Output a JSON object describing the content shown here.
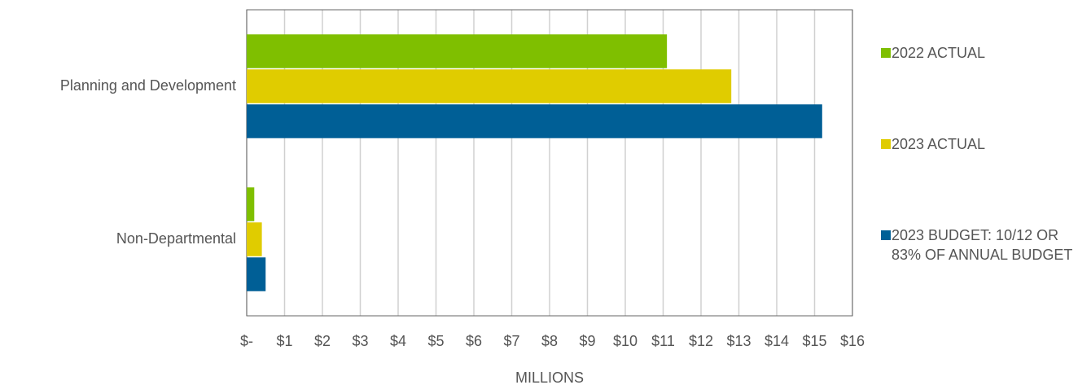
{
  "chart_data": {
    "type": "hbar",
    "categories": [
      "Planning and Development",
      "Non-Departmental"
    ],
    "series": [
      {
        "name": "2022 ACTUAL",
        "color": "#7fbf00",
        "values": [
          11.1,
          0.2
        ]
      },
      {
        "name": "2023 ACTUAL",
        "color": "#e0cc00",
        "values": [
          12.8,
          0.4
        ]
      },
      {
        "name": "2023 BUDGET:  10/12 OR 83% OF ANNUAL BUDGET",
        "color": "#005f96",
        "values": [
          15.2,
          0.5
        ]
      }
    ],
    "xlabel": "MILLIONS",
    "xlim": [
      0,
      16
    ],
    "xticks": [
      {
        "value": 0,
        "label": "$-"
      },
      {
        "value": 1,
        "label": "$1"
      },
      {
        "value": 2,
        "label": "$2"
      },
      {
        "value": 3,
        "label": "$3"
      },
      {
        "value": 4,
        "label": "$4"
      },
      {
        "value": 5,
        "label": "$5"
      },
      {
        "value": 6,
        "label": "$6"
      },
      {
        "value": 7,
        "label": "$7"
      },
      {
        "value": 8,
        "label": "$8"
      },
      {
        "value": 9,
        "label": "$9"
      },
      {
        "value": 10,
        "label": "$10"
      },
      {
        "value": 11,
        "label": "$11"
      },
      {
        "value": 12,
        "label": "$12"
      },
      {
        "value": 13,
        "label": "$13"
      },
      {
        "value": 14,
        "label": "$14"
      },
      {
        "value": 15,
        "label": "$15"
      },
      {
        "value": 16,
        "label": "$16"
      }
    ],
    "grid": true,
    "legend": "right"
  }
}
